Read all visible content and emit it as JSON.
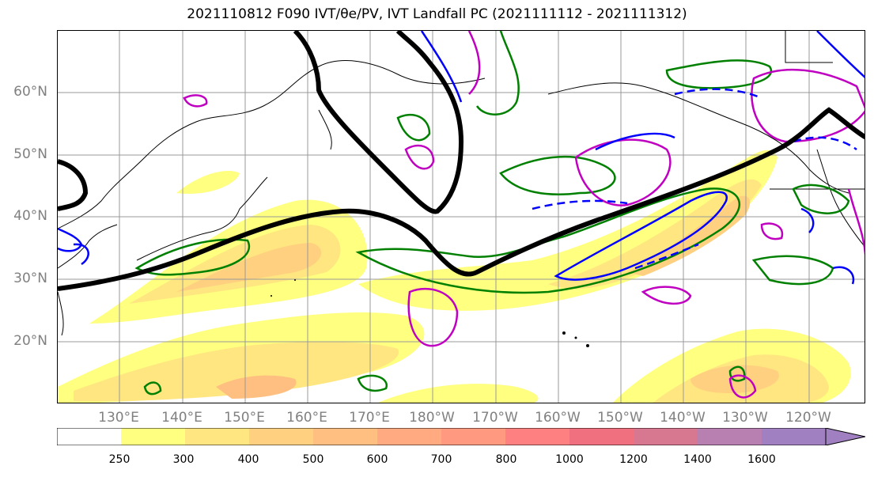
{
  "title": "2021110812 F090 IVT/θe/PV, IVT Landfall PC (2021111112 - 2021111312)",
  "lat_labels": [
    "60°N",
    "50°N",
    "40°N",
    "30°N",
    "20°N"
  ],
  "lon_labels": [
    "130°E",
    "140°E",
    "150°E",
    "160°E",
    "170°E",
    "180°W",
    "170°W",
    "160°W",
    "150°W",
    "140°W",
    "130°W",
    "120°W"
  ],
  "colorbar": {
    "ticks": [
      "250",
      "300",
      "400",
      "500",
      "600",
      "700",
      "800",
      "1000",
      "1200",
      "1400",
      "1600"
    ],
    "colors": [
      "#ffffff",
      "#ffff80",
      "#ffe680",
      "#ffd080",
      "#ffbf80",
      "#ffaa80",
      "#ff9980",
      "#ff8080",
      "#f07080",
      "#d87890",
      "#b880b0",
      "#a080c0",
      "#a080c0"
    ]
  },
  "colors": {
    "pc_contour": "#000000",
    "theta_e": "#0000ff",
    "pv_green": "#008000",
    "pv_magenta": "#c000c0"
  }
}
